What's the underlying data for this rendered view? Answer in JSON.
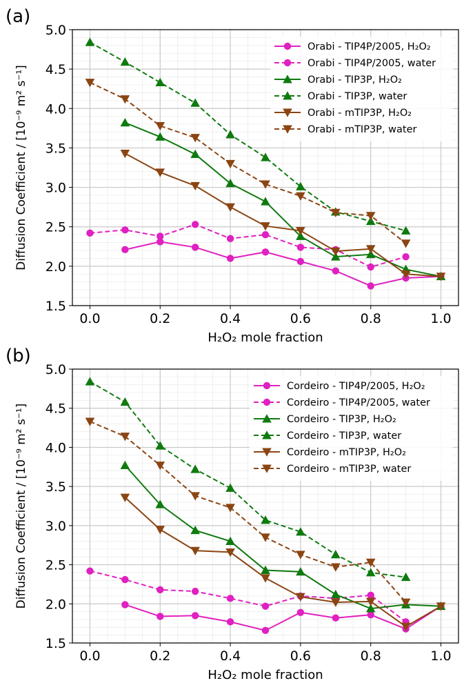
{
  "chart_data": [
    {
      "panel_label": "(a)",
      "type": "line",
      "xlabel": "H₂O₂ mole fraction",
      "ylabel": "Diffusion Coefficient / [10⁻⁹ m² s⁻¹]",
      "xlim": [
        -0.05,
        1.05
      ],
      "ylim": [
        1.5,
        5.0
      ],
      "xticks": [
        "0.0",
        "0.2",
        "0.4",
        "0.6",
        "0.8",
        "1.0"
      ],
      "yticks": [
        "1.5",
        "2.0",
        "2.5",
        "3.0",
        "3.5",
        "4.0",
        "4.5",
        "5.0"
      ],
      "grid": true,
      "legend_position": "upper right",
      "series": [
        {
          "name": "Orabi - TIP4P/2005, H₂O₂",
          "color": "#e020c0",
          "marker": "circle",
          "dashed": false,
          "x": [
            0.1,
            0.2,
            0.3,
            0.4,
            0.5,
            0.6,
            0.7,
            0.8,
            0.9,
            1.0
          ],
          "y": [
            2.21,
            2.31,
            2.24,
            2.1,
            2.18,
            2.06,
            1.94,
            1.75,
            1.85,
            1.87
          ]
        },
        {
          "name": "Orabi - TIP4P/2005, water",
          "color": "#e020c0",
          "marker": "circle",
          "dashed": true,
          "x": [
            0.0,
            0.1,
            0.2,
            0.3,
            0.4,
            0.5,
            0.6,
            0.7,
            0.8,
            0.9
          ],
          "y": [
            2.42,
            2.46,
            2.38,
            2.53,
            2.35,
            2.4,
            2.24,
            2.21,
            1.99,
            2.12
          ]
        },
        {
          "name": "Orabi - TIP3P, H₂O₂",
          "color": "#0f7a0f",
          "marker": "triangle-up",
          "dashed": false,
          "x": [
            0.1,
            0.2,
            0.3,
            0.4,
            0.5,
            0.6,
            0.7,
            0.8,
            0.9,
            1.0
          ],
          "y": [
            3.82,
            3.64,
            3.42,
            3.05,
            2.82,
            2.38,
            2.12,
            2.15,
            1.96,
            1.87
          ]
        },
        {
          "name": "Orabi - TIP3P, water",
          "color": "#0f7a0f",
          "marker": "triangle-up",
          "dashed": true,
          "x": [
            0.0,
            0.1,
            0.2,
            0.3,
            0.4,
            0.5,
            0.6,
            0.7,
            0.8,
            0.9
          ],
          "y": [
            4.84,
            4.59,
            4.33,
            4.07,
            3.67,
            3.38,
            3.01,
            2.69,
            2.57,
            2.45
          ]
        },
        {
          "name": "Orabi - mTIP3P, H₂O₂",
          "color": "#8b4513",
          "marker": "triangle-down",
          "dashed": false,
          "x": [
            0.1,
            0.2,
            0.3,
            0.4,
            0.5,
            0.6,
            0.7,
            0.8,
            0.9,
            1.0
          ],
          "y": [
            3.43,
            3.19,
            3.02,
            2.75,
            2.51,
            2.45,
            2.19,
            2.22,
            1.9,
            1.87
          ]
        },
        {
          "name": "Orabi - mTIP3P, water",
          "color": "#8b4513",
          "marker": "triangle-down",
          "dashed": true,
          "x": [
            0.0,
            0.1,
            0.2,
            0.3,
            0.4,
            0.5,
            0.6,
            0.7,
            0.8,
            0.9
          ],
          "y": [
            4.33,
            4.12,
            3.78,
            3.63,
            3.3,
            3.04,
            2.89,
            2.68,
            2.64,
            2.29
          ]
        }
      ]
    },
    {
      "panel_label": "(b)",
      "type": "line",
      "xlabel": "H₂O₂ mole fraction",
      "ylabel": "Diffusion Coefficient / [10⁻⁹ m² s⁻¹]",
      "xlim": [
        -0.05,
        1.05
      ],
      "ylim": [
        1.5,
        5.0
      ],
      "xticks": [
        "0.0",
        "0.2",
        "0.4",
        "0.6",
        "0.8",
        "1.0"
      ],
      "yticks": [
        "1.5",
        "2.0",
        "2.5",
        "3.0",
        "3.5",
        "4.0",
        "4.5",
        "5.0"
      ],
      "grid": true,
      "legend_position": "upper right",
      "series": [
        {
          "name": "Cordeiro - TIP4P/2005, H₂O₂",
          "color": "#e020c0",
          "marker": "circle",
          "dashed": false,
          "x": [
            0.1,
            0.2,
            0.3,
            0.4,
            0.5,
            0.6,
            0.7,
            0.8,
            0.9,
            1.0
          ],
          "y": [
            1.99,
            1.84,
            1.85,
            1.77,
            1.66,
            1.89,
            1.82,
            1.86,
            1.68,
            1.97
          ]
        },
        {
          "name": "Cordeiro - TIP4P/2005, water",
          "color": "#e020c0",
          "marker": "circle",
          "dashed": true,
          "x": [
            0.0,
            0.1,
            0.2,
            0.3,
            0.4,
            0.5,
            0.6,
            0.7,
            0.8,
            0.9
          ],
          "y": [
            2.42,
            2.31,
            2.18,
            2.16,
            2.07,
            1.97,
            2.1,
            2.07,
            2.11,
            1.77
          ]
        },
        {
          "name": "Cordeiro - TIP3P, H₂O₂",
          "color": "#0f7a0f",
          "marker": "triangle-up",
          "dashed": false,
          "x": [
            0.1,
            0.2,
            0.3,
            0.4,
            0.5,
            0.6,
            0.7,
            0.8,
            0.9,
            1.0
          ],
          "y": [
            3.77,
            3.27,
            2.94,
            2.8,
            2.43,
            2.41,
            2.12,
            1.94,
            1.99,
            1.97
          ]
        },
        {
          "name": "Cordeiro - TIP3P, water",
          "color": "#0f7a0f",
          "marker": "triangle-up",
          "dashed": true,
          "x": [
            0.0,
            0.1,
            0.2,
            0.3,
            0.4,
            0.5,
            0.6,
            0.7,
            0.8,
            0.9
          ],
          "y": [
            4.84,
            4.58,
            4.02,
            3.72,
            3.48,
            3.07,
            2.92,
            2.63,
            2.4,
            2.34
          ]
        },
        {
          "name": "Cordeiro - mTIP3P, H₂O₂",
          "color": "#8b4513",
          "marker": "triangle-down",
          "dashed": false,
          "x": [
            0.1,
            0.2,
            0.3,
            0.4,
            0.5,
            0.6,
            0.7,
            0.8,
            0.9,
            1.0
          ],
          "y": [
            3.36,
            2.95,
            2.68,
            2.66,
            2.33,
            2.09,
            2.02,
            2.03,
            1.71,
            1.97
          ]
        },
        {
          "name": "Cordeiro - mTIP3P, water",
          "color": "#8b4513",
          "marker": "triangle-down",
          "dashed": true,
          "x": [
            0.0,
            0.1,
            0.2,
            0.3,
            0.4,
            0.5,
            0.6,
            0.7,
            0.8,
            0.9
          ],
          "y": [
            4.33,
            4.14,
            3.77,
            3.38,
            3.23,
            2.85,
            2.63,
            2.47,
            2.53,
            2.02
          ]
        }
      ]
    }
  ]
}
